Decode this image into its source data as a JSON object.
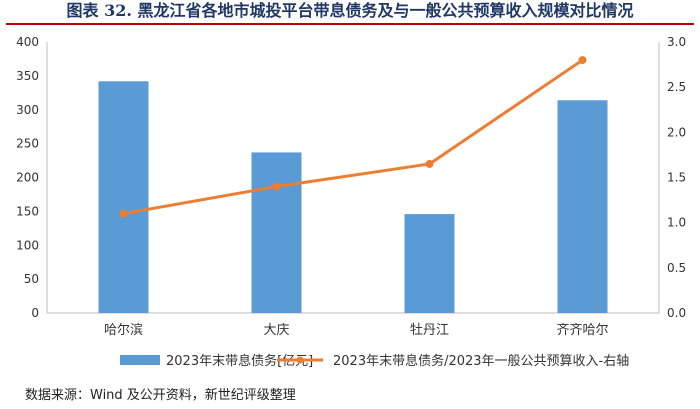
{
  "title": "图表 32.  黑龙江省各地市城投平台带息债务及与一般公共预算收入规模对比情况",
  "source": "数据来源：Wind 及公开资料，新世纪评级整理",
  "colors": {
    "bar": "#5b9bd5",
    "line": "#ed7d31",
    "title": "#1f3864",
    "rule": "#c00000"
  },
  "chart_data": {
    "type": "bar",
    "categories": [
      "哈尔滨",
      "大庆",
      "牡丹江",
      "齐齐哈尔"
    ],
    "series": [
      {
        "name": "2023年末带息债务[亿元]",
        "type": "bar",
        "axis": "left",
        "values": [
          342,
          237,
          146,
          314
        ]
      },
      {
        "name": "2023年末带息债务/2023年一般公共预算收入-右轴",
        "type": "line",
        "axis": "right",
        "values": [
          1.1,
          1.4,
          1.65,
          2.8
        ]
      }
    ],
    "y_left": {
      "min": 0,
      "max": 400,
      "ticks": [
        "0",
        "50",
        "100",
        "150",
        "200",
        "250",
        "300",
        "350",
        "400"
      ]
    },
    "y_right": {
      "min": 0,
      "max": 3.0,
      "ticks": [
        "0.0",
        "0.5",
        "1.0",
        "1.5",
        "2.0",
        "2.5",
        "3.0"
      ]
    },
    "grid": false,
    "legend": "bottom"
  }
}
